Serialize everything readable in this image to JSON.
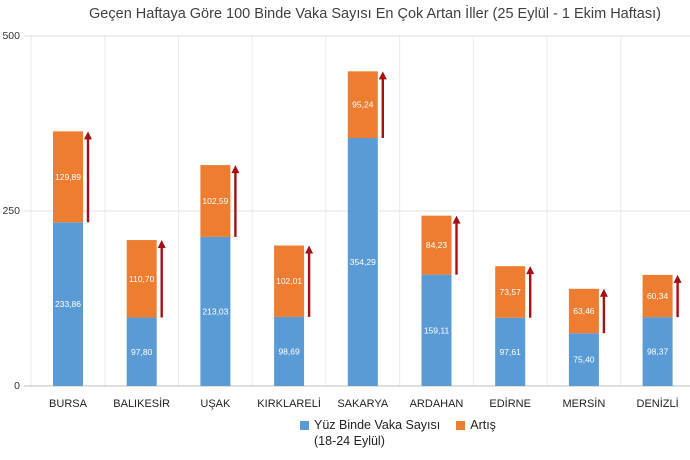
{
  "chart_data": {
    "type": "bar",
    "stacked": true,
    "title": "Geçen Haftaya Göre 100 Binde Vaka Sayısı En Çok Artan İller (25 Eylül - 1 Ekim Haftası)",
    "categories": [
      "BURSA",
      "BALIKESİR",
      "UŞAK",
      "KIRKLARELİ",
      "SAKARYA",
      "ARDAHAN",
      "EDİRNE",
      "MERSİN",
      "DENİZLİ"
    ],
    "series": [
      {
        "name": "Yüz Binde Vaka Sayısı (18-24 Eylül)",
        "values": [
          233.86,
          97.8,
          213.03,
          98.69,
          354.29,
          159.11,
          97.61,
          75.4,
          98.37
        ],
        "labels": [
          "233,86",
          "97,80",
          "213,03",
          "98,69",
          "354,29",
          "159,11",
          "97,61",
          "75,40",
          "98,37"
        ],
        "color": "#5b9bd5"
      },
      {
        "name": "Artış",
        "values": [
          129.89,
          110.7,
          102.59,
          102.01,
          95.24,
          84.23,
          73.57,
          63.46,
          60.34
        ],
        "labels": [
          "129,89",
          "110,70",
          "102,59",
          "102,01",
          "95,24",
          "84,23",
          "73,57",
          "63,46",
          "60,34"
        ],
        "color": "#ed7d31"
      }
    ],
    "ylim": [
      0,
      500
    ],
    "yticks": [
      0,
      250,
      500
    ],
    "ytick_labels": [
      "0",
      "250",
      "500"
    ],
    "grid": true,
    "legend_position": "bottom",
    "arrow_color": "#a50f15"
  },
  "legend": {
    "series1_label": "Yüz Binde Vaka Sayısı",
    "series1_sub": "(18-24 Eylül)",
    "series2_label": "Artış"
  }
}
